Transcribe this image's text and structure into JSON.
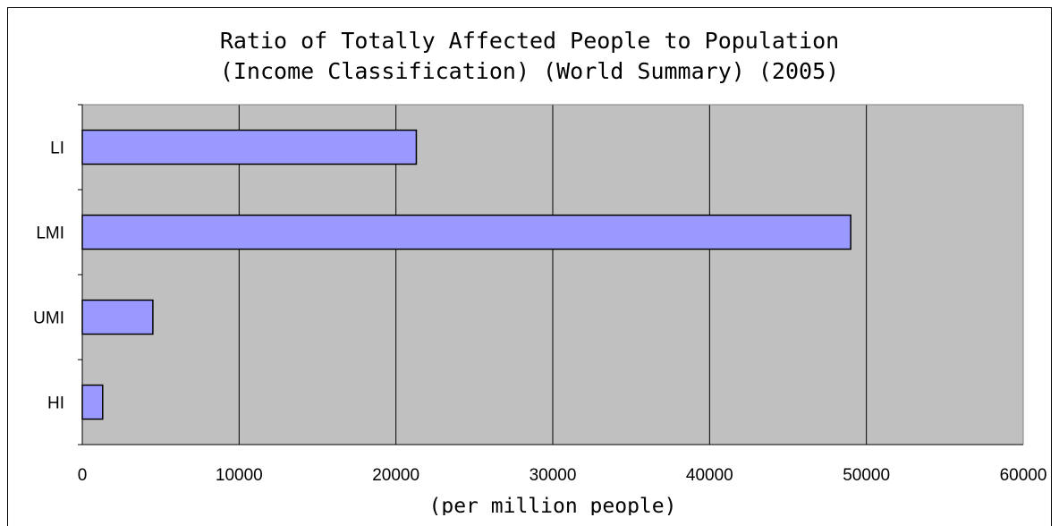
{
  "chart_data": {
    "type": "bar",
    "orientation": "horizontal",
    "title": "Ratio of Totally Affected People to Population",
    "subtitle": "(Income Classification) (World Summary) (2005)",
    "xlabel": "(per million people)",
    "ylabel": "",
    "categories": [
      "LI",
      "LMI",
      "UMI",
      "HI"
    ],
    "values": [
      21300,
      49000,
      4500,
      1300
    ],
    "xlim": [
      0,
      60000
    ],
    "xticks": [
      "0",
      "10000",
      "20000",
      "30000",
      "40000",
      "50000",
      "60000"
    ],
    "grid": "vertical",
    "legend": "none",
    "colors": {
      "plot_background": "#c0c0c0",
      "bar_fill": "#9999ff",
      "bar_stroke": "#000000",
      "gridline": "#000000"
    }
  }
}
